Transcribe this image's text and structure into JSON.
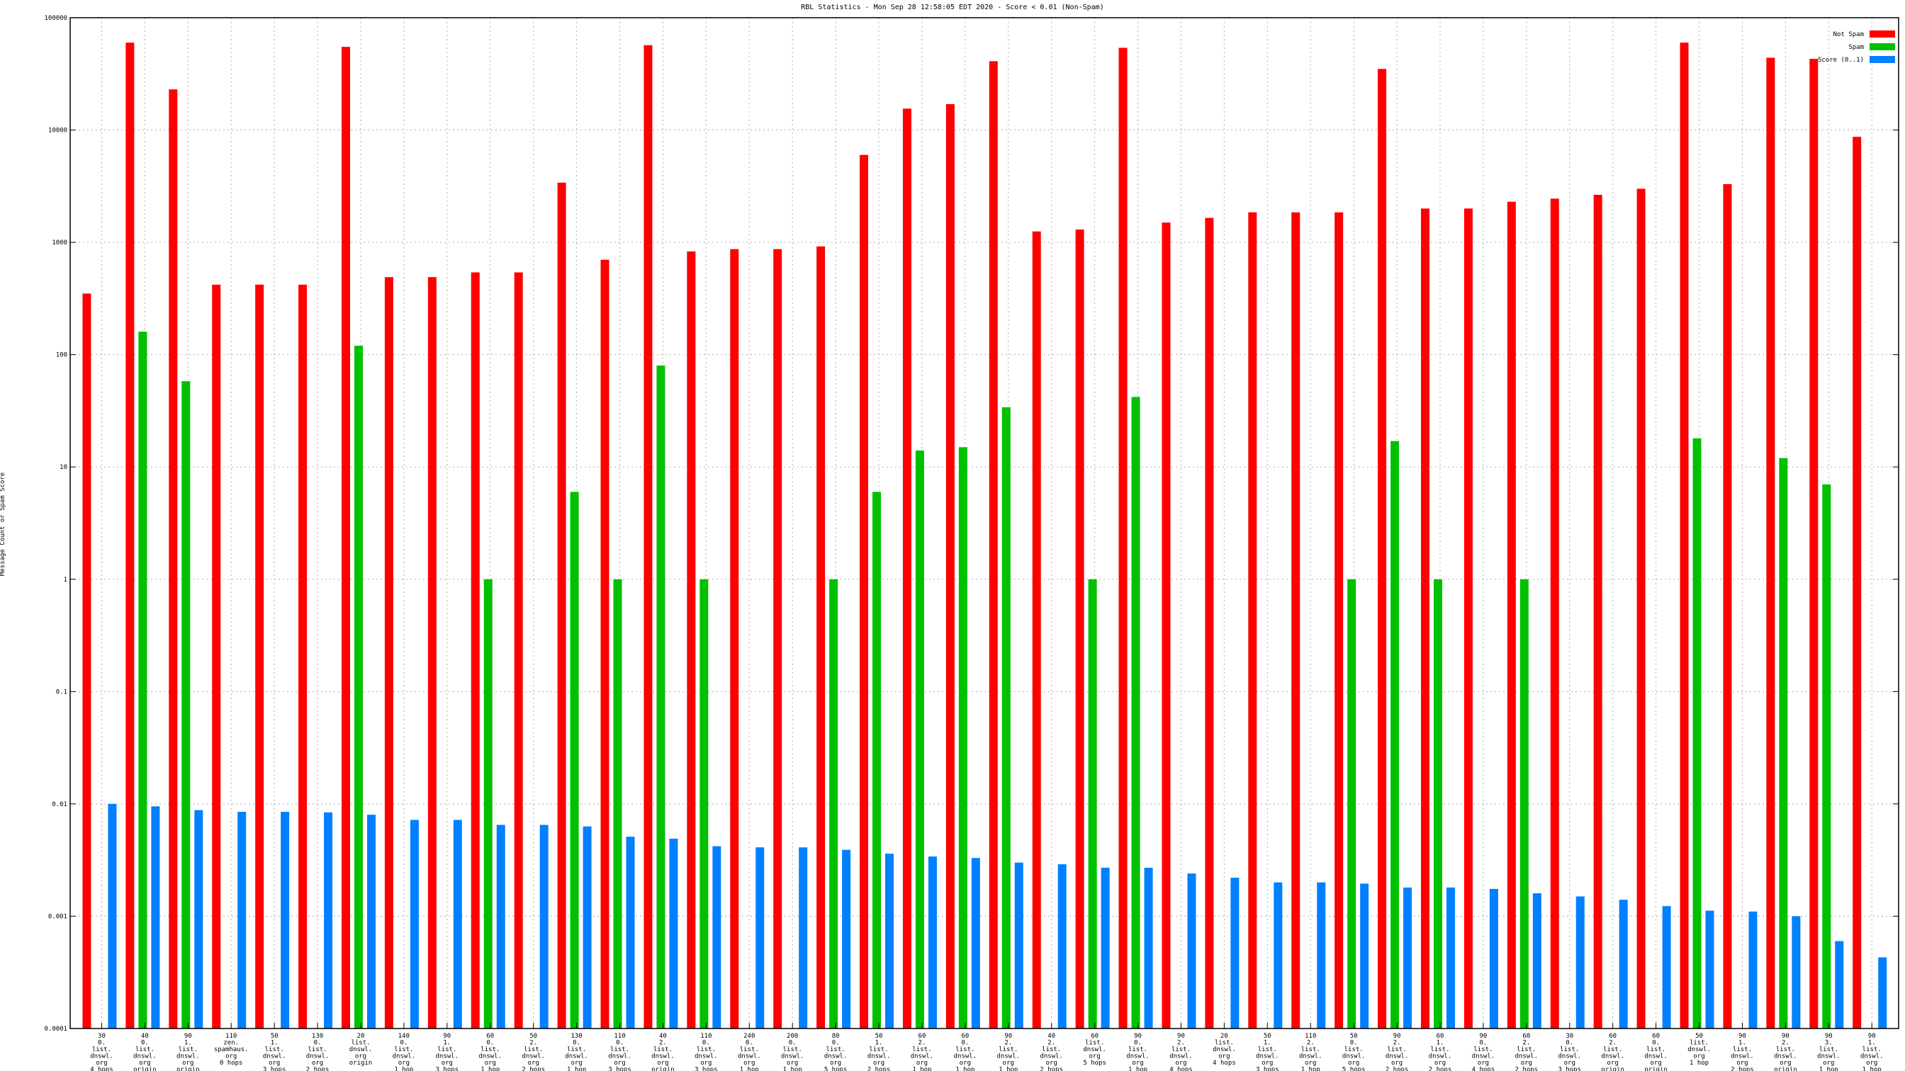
{
  "chart_data": {
    "type": "bar",
    "title": "RBL Statistics - Mon Sep 28 12:58:05 EDT 2020 - Score < 0.01 (Non-Spam)",
    "xlabel": "",
    "ylabel": "Message Count or Spam Score",
    "yscale": "log",
    "ylim": [
      0.0001,
      100000
    ],
    "yticks": [
      "0.0001",
      "0.001",
      "0.01",
      "0.1",
      "1",
      "10",
      "100",
      "1000",
      "10000",
      "100000"
    ],
    "grid": true,
    "legend_position": "top-right",
    "categories": [
      [
        "30",
        "0.",
        "list.",
        "dnswl.",
        "org",
        "4 hops"
      ],
      [
        "40",
        "0.",
        "list.",
        "dnswl.",
        "org",
        "origin"
      ],
      [
        "90",
        "1.",
        "list.",
        "dnswl.",
        "org",
        "origin"
      ],
      [
        "110",
        "zen.",
        "spamhaus.",
        "org",
        "0 hops"
      ],
      [
        "50",
        "1.",
        "list.",
        "dnswl.",
        "org",
        "3 hops"
      ],
      [
        "130",
        "0.",
        "list.",
        "dnswl.",
        "org",
        "2 hops"
      ],
      [
        "20",
        "list.",
        "dnswl.",
        "org",
        "origin"
      ],
      [
        "140",
        "0.",
        "list.",
        "dnswl.",
        "org",
        "1 hop"
      ],
      [
        "90",
        "1.",
        "list.",
        "dnswl.",
        "org",
        "3 hops"
      ],
      [
        "60",
        "0.",
        "list.",
        "dnswl.",
        "org",
        "1 hop"
      ],
      [
        "50",
        "2.",
        "list.",
        "dnswl.",
        "org",
        "2 hops"
      ],
      [
        "130",
        "0.",
        "list.",
        "dnswl.",
        "org",
        "1 hop"
      ],
      [
        "110",
        "0.",
        "list.",
        "dnswl.",
        "org",
        "3 hops"
      ],
      [
        "40",
        "2.",
        "list.",
        "dnswl.",
        "org",
        "origin"
      ],
      [
        "110",
        "0.",
        "list.",
        "dnswl.",
        "org",
        "3 hops"
      ],
      [
        "240",
        "0.",
        "list.",
        "dnswl.",
        "org",
        "1 hop"
      ],
      [
        "200",
        "0.",
        "list.",
        "dnswl.",
        "org",
        "1 hop"
      ],
      [
        "80",
        "0.",
        "list.",
        "dnswl.",
        "org",
        "5 hops"
      ],
      [
        "50",
        "1.",
        "list.",
        "dnswl.",
        "org",
        "2 hops"
      ],
      [
        "60",
        "2.",
        "list.",
        "dnswl.",
        "org",
        "1 hop"
      ],
      [
        "60",
        "0.",
        "list.",
        "dnswl.",
        "org",
        "1 hop"
      ],
      [
        "90",
        "2.",
        "list.",
        "dnswl.",
        "org",
        "1 hop"
      ],
      [
        "40",
        "2.",
        "list.",
        "dnswl.",
        "org",
        "2 hops"
      ],
      [
        "60",
        "list.",
        "dnswl.",
        "org",
        "5 hops"
      ],
      [
        "90",
        "0.",
        "list.",
        "dnswl.",
        "org",
        "1 hop"
      ],
      [
        "90",
        "2.",
        "list.",
        "dnswl.",
        "org",
        "4 hops"
      ],
      [
        "20",
        "list.",
        "dnswl.",
        "org",
        "4 hops"
      ],
      [
        "50",
        "1.",
        "list.",
        "dnswl.",
        "org",
        "3 hops"
      ],
      [
        "110",
        "2.",
        "list.",
        "dnswl.",
        "org",
        "1 hop"
      ],
      [
        "50",
        "0.",
        "list.",
        "dnswl.",
        "org",
        "5 hops"
      ],
      [
        "90",
        "2.",
        "list.",
        "dnswl.",
        "org",
        "2 hops"
      ],
      [
        "60",
        "1.",
        "list.",
        "dnswl.",
        "org",
        "2 hops"
      ],
      [
        "90",
        "0.",
        "list.",
        "dnswl.",
        "org",
        "4 hops"
      ],
      [
        "60",
        "2.",
        "list.",
        "dnswl.",
        "org",
        "2 hops"
      ],
      [
        "30",
        "0.",
        "list.",
        "dnswl.",
        "org",
        "3 hops"
      ],
      [
        "60",
        "2.",
        "list.",
        "dnswl.",
        "org",
        "origin"
      ],
      [
        "60",
        "0.",
        "list.",
        "dnswl.",
        "org",
        "origin"
      ],
      [
        "50",
        "list.",
        "dnswl.",
        "org",
        "1 hop"
      ],
      [
        "90",
        "1.",
        "list.",
        "dnswl.",
        "org",
        "2 hops"
      ],
      [
        "90",
        "2.",
        "list.",
        "dnswl.",
        "org",
        "origin"
      ],
      [
        "90",
        "3.",
        "list.",
        "dnswl.",
        "org",
        "1 hop"
      ],
      [
        "90",
        "1.",
        "list.",
        "dnswl.",
        "org",
        "1 hop"
      ]
    ],
    "series": [
      {
        "name": "Not Spam",
        "color": "#ff0000",
        "values": [
          350,
          60000,
          23000,
          420,
          420,
          420,
          55000,
          490,
          490,
          540,
          540,
          3400,
          700,
          57000,
          830,
          870,
          870,
          920,
          6000,
          15500,
          17000,
          41000,
          1250,
          1300,
          54000,
          1500,
          1650,
          1850,
          1850,
          1850,
          35000,
          2000,
          2000,
          2300,
          2450,
          2650,
          3000,
          60000,
          3300,
          44000,
          43000,
          8700
        ]
      },
      {
        "name": "Spam",
        "color": "#00c000",
        "values": [
          null,
          160,
          58,
          null,
          null,
          null,
          120,
          null,
          null,
          1,
          null,
          6,
          1,
          80,
          1,
          null,
          null,
          1,
          6,
          14,
          15,
          34,
          null,
          1,
          42,
          null,
          null,
          null,
          null,
          1,
          17,
          1,
          null,
          1,
          null,
          null,
          null,
          18,
          null,
          12,
          7,
          null
        ]
      },
      {
        "name": "Score (0..1)",
        "color": "#0080ff",
        "values": [
          0.01,
          0.0095,
          0.0088,
          0.0085,
          0.0085,
          0.0084,
          0.008,
          0.0072,
          0.0072,
          0.0065,
          0.0065,
          0.0063,
          0.0051,
          0.0049,
          0.0042,
          0.0041,
          0.0041,
          0.0039,
          0.0036,
          0.0034,
          0.0033,
          0.003,
          0.0029,
          0.0027,
          0.0027,
          0.0024,
          0.0022,
          0.002,
          0.002,
          0.00195,
          0.0018,
          0.0018,
          0.00175,
          0.0016,
          0.0015,
          0.0014,
          0.00123,
          0.00112,
          0.0011,
          0.001,
          0.0006,
          0.00043
        ]
      }
    ]
  }
}
